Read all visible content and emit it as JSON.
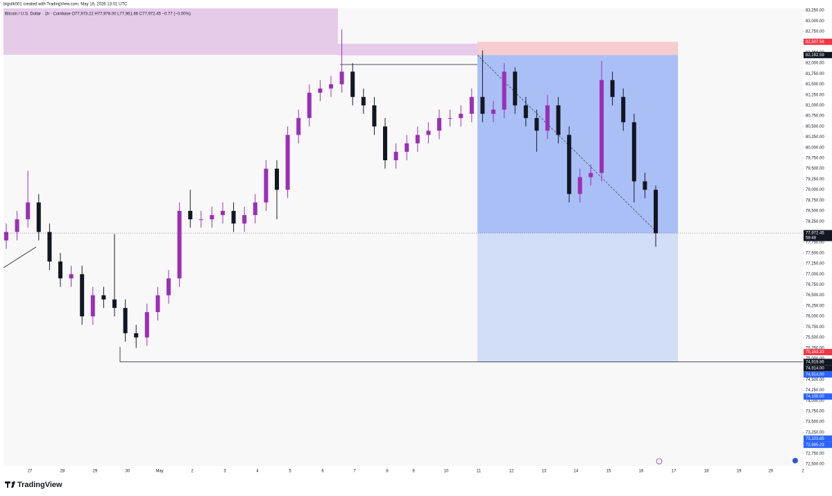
{
  "header": {
    "author_line": "bigsilk001 created with TradingView.com, May 16, 2026 13:01 UTC",
    "symbol_line": "Bitcoin / U.S. Dollar · 1h · Coinbase  O77,973.22 H77,978.00 L77,961.66 C77,972.45 −0.77 (−0.00%)"
  },
  "chart_data": {
    "type": "candlestick",
    "open": [
      77800,
      78000,
      78300,
      78700,
      78000,
      77300,
      76900,
      77000,
      76000,
      76500,
      76400,
      76200,
      75600,
      75500,
      76100,
      76500,
      76900,
      78500,
      78300,
      78300,
      78400,
      78500,
      78200,
      78400,
      78700,
      79500,
      79000,
      80300,
      80700,
      81300,
      81400,
      81500,
      81800,
      81200,
      81000,
      80500,
      79700,
      79900,
      80100,
      80300,
      80400,
      80700,
      80700,
      80800,
      81200,
      80800,
      80900,
      81800,
      81000,
      80700,
      80400,
      81000,
      80300,
      78900,
      79300,
      79400,
      81600,
      81200,
      80600,
      79200,
      79000
    ],
    "high": [
      78200,
      78500,
      79450,
      78900,
      78200,
      77500,
      77200,
      77200,
      76700,
      76700,
      77950,
      76400,
      75800,
      76300,
      76700,
      77100,
      78700,
      79000,
      78500,
      78600,
      78700,
      78700,
      78600,
      78900,
      79700,
      79700,
      80500,
      80900,
      81500,
      81600,
      81700,
      82800,
      82000,
      81400,
      81200,
      80700,
      80100,
      80300,
      80500,
      80600,
      80900,
      80900,
      81000,
      81400,
      82300,
      81100,
      82000,
      81900,
      81200,
      80900,
      81250,
      81200,
      80500,
      79500,
      79600,
      82050,
      81800,
      81400,
      80800,
      79400,
      79100
    ],
    "low": [
      77600,
      77800,
      78100,
      77800,
      77100,
      76700,
      76700,
      75800,
      75800,
      76200,
      76000,
      75400,
      75250,
      75300,
      75900,
      76300,
      76700,
      78100,
      78100,
      78100,
      78200,
      78000,
      78000,
      78200,
      78500,
      78300,
      78800,
      80100,
      80500,
      81100,
      81200,
      81300,
      81000,
      80800,
      80300,
      79500,
      79500,
      79700,
      79900,
      80100,
      80200,
      80500,
      80500,
      80600,
      80600,
      80600,
      80700,
      80800,
      80500,
      79900,
      80200,
      80100,
      78700,
      78700,
      79100,
      79200,
      81000,
      80400,
      78700,
      78800,
      77650
    ],
    "close": [
      78000,
      78300,
      78700,
      78000,
      77300,
      76900,
      77000,
      76000,
      76500,
      76400,
      76200,
      75600,
      75500,
      76100,
      76500,
      76900,
      78500,
      78300,
      78300,
      78400,
      78500,
      78200,
      78400,
      78700,
      79500,
      79000,
      80300,
      80700,
      81300,
      81400,
      81500,
      81800,
      81200,
      81000,
      80500,
      79700,
      79900,
      80100,
      80300,
      80400,
      80700,
      80700,
      80800,
      81200,
      80800,
      80900,
      81800,
      81000,
      80700,
      80400,
      81000,
      80300,
      78900,
      79300,
      79400,
      81600,
      81200,
      80600,
      79200,
      79000,
      77970
    ],
    "up_color": "#9b2fb5",
    "down_color": "#131722",
    "ylim": [
      72450,
      83300
    ],
    "yticks": [
      {
        "value": 83250,
        "label": "83,250.00"
      },
      {
        "value": 83000,
        "label": "83,000.00"
      },
      {
        "value": 82750,
        "label": "82,750.00"
      },
      {
        "value": 82500,
        "label": "82,500.00"
      },
      {
        "value": 82250,
        "label": "82,250.00"
      },
      {
        "value": 82000,
        "label": "82,000.00"
      },
      {
        "value": 81750,
        "label": "81,750.00"
      },
      {
        "value": 81500,
        "label": "81,500.00"
      },
      {
        "value": 81250,
        "label": "81,250.00"
      },
      {
        "value": 81000,
        "label": "81,000.00"
      },
      {
        "value": 80750,
        "label": "80,750.00"
      },
      {
        "value": 80500,
        "label": "80,500.00"
      },
      {
        "value": 80250,
        "label": "80,250.00"
      },
      {
        "value": 80000,
        "label": "80,000.00"
      },
      {
        "value": 79750,
        "label": "79,750.00"
      },
      {
        "value": 79500,
        "label": "79,500.00"
      },
      {
        "value": 79250,
        "label": "79,250.00"
      },
      {
        "value": 79000,
        "label": "79,000.00"
      },
      {
        "value": 78750,
        "label": "78,750.00"
      },
      {
        "value": 78500,
        "label": "78,500.00"
      },
      {
        "value": 78250,
        "label": "78,250.00"
      },
      {
        "value": 78000,
        "label": "78,000.00"
      },
      {
        "value": 77750,
        "label": "77,750.00"
      },
      {
        "value": 77500,
        "label": "77,500.00"
      },
      {
        "value": 77250,
        "label": "77,250.00"
      },
      {
        "value": 77000,
        "label": "77,000.00"
      },
      {
        "value": 76750,
        "label": "76,750.00"
      },
      {
        "value": 76500,
        "label": "76,500.00"
      },
      {
        "value": 76250,
        "label": "76,250.00"
      },
      {
        "value": 76000,
        "label": "76,000.00"
      },
      {
        "value": 75750,
        "label": "75,750.00"
      },
      {
        "value": 75500,
        "label": "75,500.00"
      },
      {
        "value": 75250,
        "label": "75,250.00"
      },
      {
        "value": 75000,
        "label": "75,000.00"
      },
      {
        "value": 74750,
        "label": "74,750.00"
      },
      {
        "value": 74500,
        "label": "74,500.00"
      },
      {
        "value": 74250,
        "label": "74,250.00"
      },
      {
        "value": 74000,
        "label": "74,000.00"
      },
      {
        "value": 73750,
        "label": "73,750.00"
      },
      {
        "value": 73500,
        "label": "73,500.00"
      },
      {
        "value": 73250,
        "label": "73,250.00"
      },
      {
        "value": 73000,
        "label": "73,000.00"
      },
      {
        "value": 72750,
        "label": "72,750.00"
      },
      {
        "value": 72500,
        "label": "72,500.00"
      }
    ],
    "date_labels": [
      "27",
      "28",
      "29",
      "30",
      "May",
      "2",
      "3",
      "4",
      "5",
      "6",
      "7",
      "8",
      "9",
      "10",
      "11",
      "12",
      "13",
      "14",
      "15",
      "16",
      "17",
      "18",
      "19",
      "20",
      "2"
    ],
    "price_tags": [
      {
        "value": 82507.58,
        "label": "82,507.58",
        "color": "#f23645"
      },
      {
        "value": 82192.59,
        "label": "82,192.59",
        "color": "#131722"
      },
      {
        "value": 77972.45,
        "label": "77,972.45",
        "color": "#131722"
      },
      {
        "value": 75153.33,
        "label": "75,153.33",
        "color": "#f23645"
      },
      {
        "value": 74919.86,
        "label": "74,919.86",
        "color": "#131722"
      },
      {
        "value": 74914.0,
        "label": "74,914.00",
        "color": "#131722"
      },
      {
        "value": 74914.0,
        "label": "74,914.00",
        "color": "#2962ff"
      },
      {
        "value": 74100.0,
        "label": "74,100.00",
        "color": "#2962ff"
      },
      {
        "value": 73103.85,
        "label": "73,103.85",
        "color": "#2962ff"
      },
      {
        "value": 72995.23,
        "label": "72,995.23",
        "color": "#2962ff"
      }
    ],
    "countdown": "58:48"
  },
  "footer": {
    "brand": "TradingView"
  }
}
